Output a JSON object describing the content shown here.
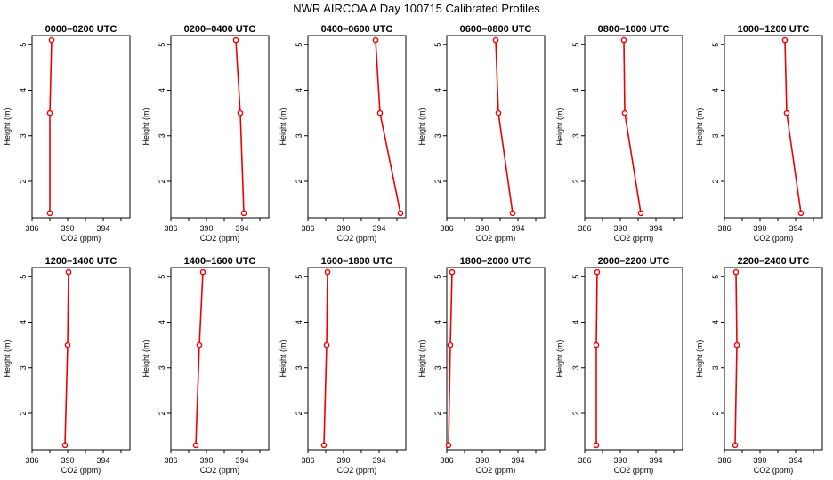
{
  "figure": {
    "title": "NWR AIRCOA A  Day 100715  Calibrated Profiles"
  },
  "colors": {
    "series": "#ee0000",
    "axis": "#000000"
  },
  "chart_data": [
    {
      "type": "line",
      "title": "0000–0200 UTC",
      "xlabel": "CO2 (ppm)",
      "ylabel": "Height (m)",
      "xlim": [
        386,
        397
      ],
      "ylim": [
        1.2,
        5.2
      ],
      "xticks": [
        "386",
        "390",
        "394"
      ],
      "yticks": [
        "2",
        "3",
        "4",
        "5"
      ],
      "x": [
        388.2,
        388.0,
        388.0
      ],
      "y": [
        5.1,
        3.5,
        1.3
      ]
    },
    {
      "type": "line",
      "title": "0200–0400 UTC",
      "xlabel": "CO2 (ppm)",
      "ylabel": "Height (m)",
      "xlim": [
        386,
        397
      ],
      "ylim": [
        1.2,
        5.2
      ],
      "xticks": [
        "386",
        "390",
        "394"
      ],
      "yticks": [
        "2",
        "3",
        "4",
        "5"
      ],
      "x": [
        393.3,
        393.8,
        394.2
      ],
      "y": [
        5.1,
        3.5,
        1.3
      ]
    },
    {
      "type": "line",
      "title": "0400–0600 UTC",
      "xlabel": "CO2 (ppm)",
      "ylabel": "Height (m)",
      "xlim": [
        386,
        397
      ],
      "ylim": [
        1.2,
        5.2
      ],
      "xticks": [
        "386",
        "390",
        "394"
      ],
      "yticks": [
        "2",
        "3",
        "4",
        "5"
      ],
      "x": [
        393.6,
        394.1,
        396.4
      ],
      "y": [
        5.1,
        3.5,
        1.3
      ]
    },
    {
      "type": "line",
      "title": "0600–0800 UTC",
      "xlabel": "CO2 (ppm)",
      "ylabel": "Height (m)",
      "xlim": [
        386,
        397
      ],
      "ylim": [
        1.2,
        5.2
      ],
      "xticks": [
        "386",
        "390",
        "394"
      ],
      "yticks": [
        "2",
        "3",
        "4",
        "5"
      ],
      "x": [
        391.5,
        391.8,
        393.4
      ],
      "y": [
        5.1,
        3.5,
        1.3
      ]
    },
    {
      "type": "line",
      "title": "0800–1000 UTC",
      "xlabel": "CO2 (ppm)",
      "ylabel": "Height (m)",
      "xlim": [
        386,
        397
      ],
      "ylim": [
        1.2,
        5.2
      ],
      "xticks": [
        "386",
        "390",
        "394"
      ],
      "yticks": [
        "2",
        "3",
        "4",
        "5"
      ],
      "x": [
        390.4,
        390.5,
        392.3
      ],
      "y": [
        5.1,
        3.5,
        1.3
      ]
    },
    {
      "type": "line",
      "title": "1000–1200 UTC",
      "xlabel": "CO2 (ppm)",
      "ylabel": "Height (m)",
      "xlim": [
        386,
        397
      ],
      "ylim": [
        1.2,
        5.2
      ],
      "xticks": [
        "386",
        "390",
        "394"
      ],
      "yticks": [
        "2",
        "3",
        "4",
        "5"
      ],
      "x": [
        392.8,
        393.0,
        394.6
      ],
      "y": [
        5.1,
        3.5,
        1.3
      ]
    },
    {
      "type": "line",
      "title": "1200–1400 UTC",
      "xlabel": "CO2 (ppm)",
      "ylabel": "Height (m)",
      "xlim": [
        386,
        397
      ],
      "ylim": [
        1.2,
        5.2
      ],
      "xticks": [
        "386",
        "390",
        "394"
      ],
      "yticks": [
        "2",
        "3",
        "4",
        "5"
      ],
      "x": [
        390.1,
        390.0,
        389.7
      ],
      "y": [
        5.1,
        3.5,
        1.3
      ]
    },
    {
      "type": "line",
      "title": "1400–1600 UTC",
      "xlabel": "CO2 (ppm)",
      "ylabel": "Height (m)",
      "xlim": [
        386,
        397
      ],
      "ylim": [
        1.2,
        5.2
      ],
      "xticks": [
        "386",
        "390",
        "394"
      ],
      "yticks": [
        "2",
        "3",
        "4",
        "5"
      ],
      "x": [
        389.6,
        389.2,
        388.8
      ],
      "y": [
        5.1,
        3.5,
        1.3
      ]
    },
    {
      "type": "line",
      "title": "1600–1800 UTC",
      "xlabel": "CO2 (ppm)",
      "ylabel": "Height (m)",
      "xlim": [
        386,
        397
      ],
      "ylim": [
        1.2,
        5.2
      ],
      "xticks": [
        "386",
        "390",
        "394"
      ],
      "yticks": [
        "2",
        "3",
        "4",
        "5"
      ],
      "x": [
        388.2,
        388.1,
        387.8
      ],
      "y": [
        5.1,
        3.5,
        1.3
      ]
    },
    {
      "type": "line",
      "title": "1800–2000 UTC",
      "xlabel": "CO2 (ppm)",
      "ylabel": "Height (m)",
      "xlim": [
        386,
        397
      ],
      "ylim": [
        1.2,
        5.2
      ],
      "xticks": [
        "386",
        "390",
        "394"
      ],
      "yticks": [
        "2",
        "3",
        "4",
        "5"
      ],
      "x": [
        386.6,
        386.4,
        386.2
      ],
      "y": [
        5.1,
        3.5,
        1.3
      ]
    },
    {
      "type": "line",
      "title": "2000–2200 UTC",
      "xlabel": "CO2 (ppm)",
      "ylabel": "Height (m)",
      "xlim": [
        386,
        397
      ],
      "ylim": [
        1.2,
        5.2
      ],
      "xticks": [
        "386",
        "390",
        "394"
      ],
      "yticks": [
        "2",
        "3",
        "4",
        "5"
      ],
      "x": [
        387.4,
        387.3,
        387.3
      ],
      "y": [
        5.1,
        3.5,
        1.3
      ]
    },
    {
      "type": "line",
      "title": "2200–2400 UTC",
      "xlabel": "CO2 (ppm)",
      "ylabel": "Height (m)",
      "xlim": [
        386,
        397
      ],
      "ylim": [
        1.2,
        5.2
      ],
      "xticks": [
        "386",
        "390",
        "394"
      ],
      "yticks": [
        "2",
        "3",
        "4",
        "5"
      ],
      "x": [
        387.3,
        387.4,
        387.2
      ],
      "y": [
        5.1,
        3.5,
        1.3
      ]
    }
  ]
}
